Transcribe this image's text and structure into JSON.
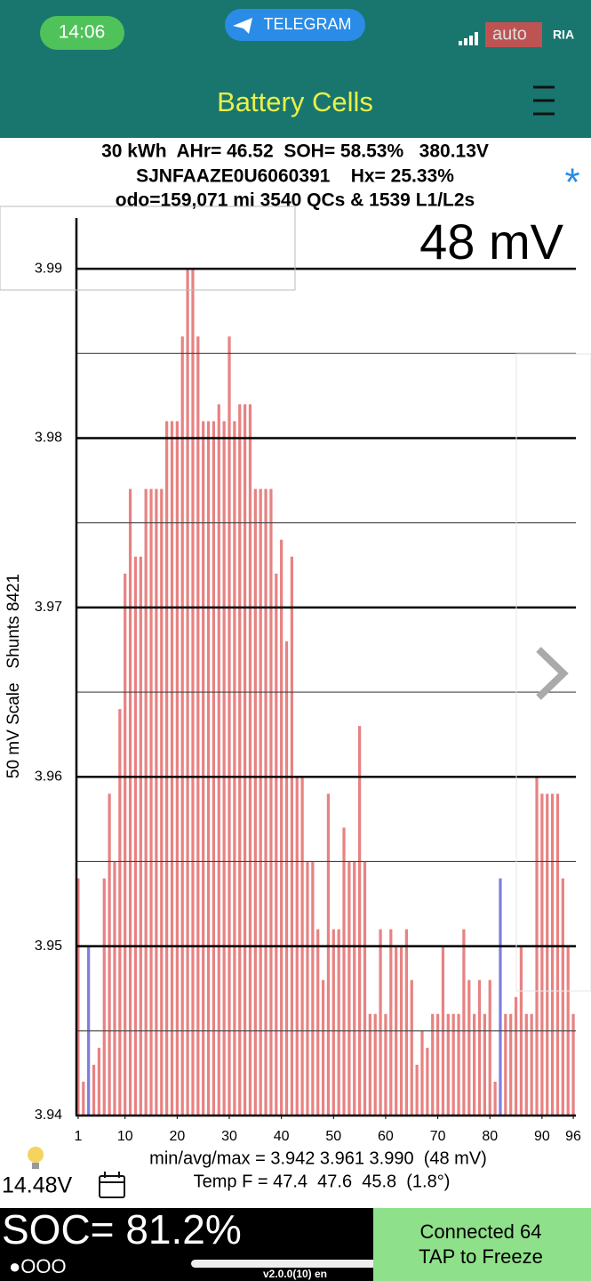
{
  "status_bar": {
    "time": "14:06",
    "app": "TELEGRAM",
    "watermark": [
      "auto",
      "RIA"
    ]
  },
  "header": {
    "title": "Battery Cells"
  },
  "info": {
    "line1": "30 kWh  AHr= 46.52  SOH= 58.53%   380.13V",
    "line2": "SJNFAAZE0U6060391    Hx= 25.33%",
    "line3": "odo=159,071 mi 3540 QCs & 1539 L1/L2s"
  },
  "chart_data": {
    "type": "bar",
    "spread_label": "48 mV",
    "y_label": "50 mV Scale   Shunts 8421",
    "x": [
      1,
      2,
      3,
      4,
      5,
      6,
      7,
      8,
      9,
      10,
      11,
      12,
      13,
      14,
      15,
      16,
      17,
      18,
      19,
      20,
      21,
      22,
      23,
      24,
      25,
      26,
      27,
      28,
      29,
      30,
      31,
      32,
      33,
      34,
      35,
      36,
      37,
      38,
      39,
      40,
      41,
      42,
      43,
      44,
      45,
      46,
      47,
      48,
      49,
      50,
      51,
      52,
      53,
      54,
      55,
      56,
      57,
      58,
      59,
      60,
      61,
      62,
      63,
      64,
      65,
      66,
      67,
      68,
      69,
      70,
      71,
      72,
      73,
      74,
      75,
      76,
      77,
      78,
      79,
      80,
      81,
      82,
      83,
      84,
      85,
      86,
      87,
      88,
      89,
      90,
      91,
      92,
      93,
      94,
      95,
      96
    ],
    "values": [
      3.954,
      3.942,
      3.95,
      3.943,
      3.944,
      3.954,
      3.959,
      3.955,
      3.964,
      3.972,
      3.977,
      3.973,
      3.973,
      3.977,
      3.977,
      3.977,
      3.977,
      3.981,
      3.981,
      3.981,
      3.986,
      3.99,
      3.99,
      3.986,
      3.981,
      3.981,
      3.981,
      3.982,
      3.981,
      3.986,
      3.981,
      3.982,
      3.982,
      3.982,
      3.977,
      3.977,
      3.977,
      3.977,
      3.972,
      3.974,
      3.968,
      3.973,
      3.96,
      3.96,
      3.955,
      3.955,
      3.951,
      3.948,
      3.959,
      3.951,
      3.951,
      3.957,
      3.955,
      3.955,
      3.963,
      3.955,
      3.946,
      3.946,
      3.951,
      3.946,
      3.951,
      3.95,
      3.95,
      3.951,
      3.948,
      3.943,
      3.945,
      3.944,
      3.946,
      3.946,
      3.95,
      3.946,
      3.946,
      3.946,
      3.951,
      3.948,
      3.946,
      3.948,
      3.946,
      3.948,
      3.942,
      3.954,
      3.946,
      3.946,
      3.947,
      3.95,
      3.946,
      3.946,
      3.96,
      3.959,
      3.959,
      3.959,
      3.959,
      3.954,
      3.95,
      3.946
    ],
    "colors": [
      "#e88282",
      "#e88282",
      "#7e7ee0",
      "#e88282",
      "#e88282",
      "#e88282",
      "#e88282",
      "#e88282",
      "#e88282",
      "#e88282",
      "#e88282",
      "#e88282",
      "#e88282",
      "#e88282",
      "#e88282",
      "#e88282",
      "#e88282",
      "#e88282",
      "#e88282",
      "#e88282",
      "#e88282",
      "#e88282",
      "#e88282",
      "#e88282",
      "#e88282",
      "#e88282",
      "#e88282",
      "#e88282",
      "#e88282",
      "#e88282",
      "#e88282",
      "#e88282",
      "#e88282",
      "#e88282",
      "#e88282",
      "#e88282",
      "#e88282",
      "#e88282",
      "#e88282",
      "#e88282",
      "#e88282",
      "#e88282",
      "#e88282",
      "#e88282",
      "#e88282",
      "#e88282",
      "#e88282",
      "#e88282",
      "#e88282",
      "#e88282",
      "#e88282",
      "#e88282",
      "#e88282",
      "#e88282",
      "#e88282",
      "#e88282",
      "#e88282",
      "#e88282",
      "#e88282",
      "#e88282",
      "#e88282",
      "#e88282",
      "#e88282",
      "#e88282",
      "#e88282",
      "#e88282",
      "#e88282",
      "#e88282",
      "#e88282",
      "#e88282",
      "#e88282",
      "#e88282",
      "#e88282",
      "#e88282",
      "#e88282",
      "#e88282",
      "#e88282",
      "#e88282",
      "#e88282",
      "#e88282",
      "#e88282",
      "#7e7ee0",
      "#e88282",
      "#e88282",
      "#e88282",
      "#e88282",
      "#e88282",
      "#e88282",
      "#e88282",
      "#e88282",
      "#e88282",
      "#e88282",
      "#e88282",
      "#e88282",
      "#e88282",
      "#e88282"
    ],
    "xlim": [
      0.5,
      96.5
    ],
    "xticks": [
      1,
      10,
      20,
      30,
      40,
      50,
      60,
      70,
      80,
      90,
      96
    ],
    "ylim": [
      3.94,
      3.993
    ],
    "yticks": [
      3.94,
      3.95,
      3.96,
      3.97,
      3.98,
      3.99
    ],
    "minor_yticks": [
      3.945,
      3.955,
      3.965,
      3.975,
      3.985
    ],
    "grid": true
  },
  "footer": {
    "stats": "min/avg/max = 3.942 3.961 3.990  (48 mV)",
    "temps": "Temp F = 47.4  47.6  45.8  (1.8°)",
    "voltage": "14.48V",
    "soc": "SOC= 81.2%",
    "dots": "●OOO",
    "version": "v2.0.0(10) en",
    "connected": "Connected 64",
    "tap": "TAP to Freeze"
  }
}
